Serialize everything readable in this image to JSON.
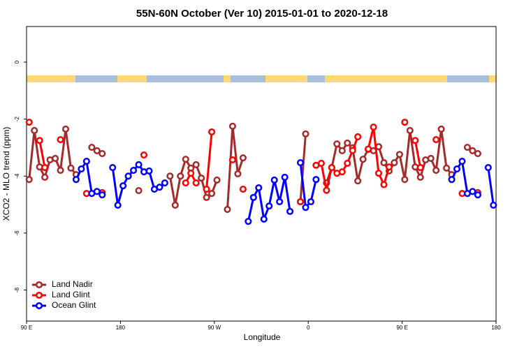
{
  "chart_data": {
    "type": "line",
    "title": "55N-60N October (Ver 10)   2015-01-01 to 2020-12-18",
    "x_label": "Longitude",
    "y_label": "XCO2 - MLO trend (ppm)",
    "xlim": [
      90,
      540
    ],
    "ylim": [
      -9.09,
      1.25
    ],
    "xticks": [
      {
        "value": 90,
        "label": "90 E"
      },
      {
        "value": 180,
        "label": "180"
      },
      {
        "value": 270,
        "label": "90 W"
      },
      {
        "value": 360,
        "label": "0"
      },
      {
        "value": 450,
        "label": "90 E"
      },
      {
        "value": 540,
        "label": "180"
      }
    ],
    "yticks": [
      0,
      -2,
      -4,
      -6,
      -8
    ],
    "legend": "bottom-left",
    "series": [
      {
        "name": "Land Nadir",
        "color": "#a52a2a",
        "x": [
          92.5,
          97.5,
          102.5,
          107.5,
          112.5,
          117.5,
          122.5,
          127.5,
          132.5,
          137.5,
          142.5,
          152.5,
          157.5,
          162.5,
          167.5,
          197.5,
          202.5,
          227.5,
          232.5,
          237.5,
          242.5,
          247.5,
          252.5,
          257.5,
          262.5,
          267.5,
          272.5,
          277.5,
          282.5,
          287.5,
          292.5,
          297.5,
          302.5,
          352.5,
          357.5,
          362.5,
          377.5,
          382.5,
          387.5,
          392.5,
          397.5,
          402.5,
          407.5,
          412.5,
          417.5,
          422.5,
          427.5,
          432.5,
          437.5,
          442.5,
          447.5,
          452.5,
          457.5,
          462.5,
          467.5,
          472.5,
          477.5,
          482.5,
          487.5,
          492.5,
          497.5,
          502.5,
          512.5,
          517.5,
          522.5
        ],
        "values": [
          -4.12,
          -2.4,
          -3.68,
          -4.04,
          -3.43,
          -3.38,
          -3.8,
          -2.35,
          -3.72,
          -3.95,
          null,
          -2.99,
          -3.11,
          -3.21,
          null,
          -4.51,
          null,
          -4.0,
          -5.02,
          -4.0,
          -3.41,
          -3.72,
          -3.6,
          -4.07,
          -4.75,
          -4.61,
          -4.14,
          null,
          -5.17,
          -2.25,
          -3.92,
          -3.36,
          null,
          -4.9,
          -2.52,
          null,
          -4.24,
          -3.7,
          -2.87,
          -3.11,
          -2.84,
          -3.01,
          -4.17,
          -3.41,
          -3.06,
          -3.11,
          -2.97,
          -3.53,
          -3.82,
          -3.53,
          -3.24,
          -4.12,
          -2.4,
          -3.68,
          -4.04,
          -3.43,
          -3.38,
          -3.8,
          -2.35,
          -3.72,
          -3.95,
          null,
          -2.99,
          -3.11,
          -3.21
        ]
      },
      {
        "name": "Land Glint",
        "color": "#ff0000",
        "x": [
          92.5,
          97.5,
          102.5,
          107.5,
          112.5,
          122.5,
          127.5,
          147.5,
          152.5,
          162.5,
          167.5,
          202.5,
          207.5,
          242.5,
          247.5,
          252.5,
          257.5,
          262.5,
          267.5,
          272.5,
          287.5,
          292.5,
          297.5,
          302.5,
          352.5,
          357.5,
          367.5,
          372.5,
          377.5,
          382.5,
          387.5,
          392.5,
          397.5,
          402.5,
          407.5,
          412.5,
          417.5,
          422.5,
          427.5,
          432.5,
          437.5,
          442.5,
          452.5,
          457.5,
          462.5,
          467.5,
          472.5,
          482.5,
          487.5,
          507.5,
          512.5,
          522.5
        ],
        "values": [
          -2.11,
          null,
          -2.75,
          -3.7,
          null,
          -2.72,
          null,
          -4.61,
          null,
          -4.58,
          null,
          -3.26,
          null,
          -4.24,
          -3.9,
          -4.24,
          null,
          -4.46,
          -2.45,
          null,
          -3.43,
          null,
          -4.46,
          null,
          -4.9,
          null,
          -3.62,
          -3.55,
          -4.5,
          -3.7,
          -3.9,
          -3.85,
          -3.55,
          -3.1,
          -2.62,
          null,
          -3.05,
          -2.28,
          -3.9,
          -4.3,
          -3.68,
          null,
          -2.11,
          null,
          -2.75,
          -3.7,
          null,
          -2.72,
          null,
          -4.61,
          null,
          -4.58
        ]
      },
      {
        "name": "Ocean Glint",
        "color": "#0000ff",
        "x": [
          137.5,
          142.5,
          147.5,
          152.5,
          157.5,
          162.5,
          167.5,
          172.5,
          177.5,
          182.5,
          187.5,
          192.5,
          197.5,
          202.5,
          207.5,
          212.5,
          217.5,
          222.5,
          227.5,
          302.5,
          307.5,
          312.5,
          317.5,
          322.5,
          327.5,
          332.5,
          337.5,
          342.5,
          347.5,
          352.5,
          357.5,
          362.5,
          367.5,
          372.5,
          497.5,
          502.5,
          507.5,
          512.5,
          517.5,
          522.5,
          527.5,
          532.5,
          537.5
        ],
        "values": [
          -4.12,
          -3.75,
          -3.48,
          -4.61,
          -4.54,
          -4.66,
          null,
          -3.7,
          -5.02,
          -4.34,
          -4.0,
          -3.8,
          -3.6,
          -3.85,
          -3.82,
          -4.46,
          -4.39,
          -4.24,
          null,
          -5.59,
          -4.75,
          -4.41,
          -5.51,
          -5.05,
          -4.14,
          -4.9,
          -4.04,
          -5.24,
          null,
          -3.53,
          -5.1,
          -4.9,
          -4.12,
          null,
          -4.12,
          -3.75,
          -3.48,
          -4.61,
          -4.54,
          -4.66,
          null,
          -3.7,
          -5.02
        ]
      }
    ]
  }
}
